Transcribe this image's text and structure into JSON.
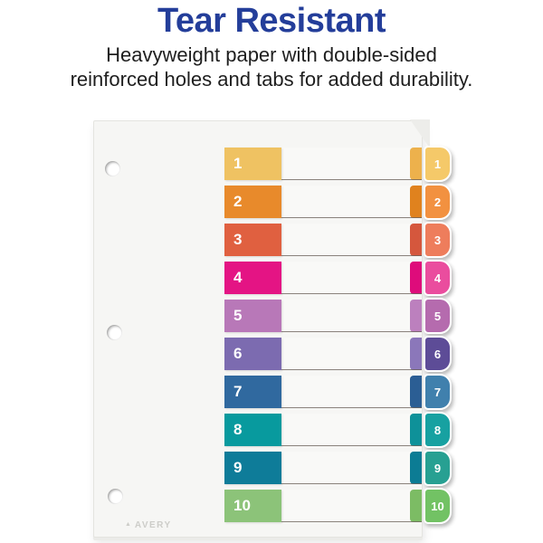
{
  "header": {
    "title": "Tear Resistant",
    "subtitle_line1": "Heavyweight paper with double-sided",
    "subtitle_line2": "reinforced holes and tabs for added durability.",
    "title_color": "#243E9A",
    "subtitle_color": "#1E1E1E"
  },
  "sheet": {
    "background": "#F6F6F4",
    "hole_count": 3,
    "brand": "AVERY",
    "rows": [
      {
        "label": "1",
        "block_color": "#EFC262",
        "strip_color": "#EDB14C",
        "tab_color": "#F5C969"
      },
      {
        "label": "2",
        "block_color": "#E88A2B",
        "strip_color": "#E0821E",
        "tab_color": "#F29140"
      },
      {
        "label": "3",
        "block_color": "#E06040",
        "strip_color": "#D5573D",
        "tab_color": "#EE7D5C"
      },
      {
        "label": "4",
        "block_color": "#E41484",
        "strip_color": "#DE0C7B",
        "tab_color": "#EA4D9E"
      },
      {
        "label": "5",
        "block_color": "#B878B8",
        "strip_color": "#BC80BE",
        "tab_color": "#B56BAE"
      },
      {
        "label": "6",
        "block_color": "#7C6BB0",
        "strip_color": "#8B77BA",
        "tab_color": "#5D4C97"
      },
      {
        "label": "7",
        "block_color": "#30699F",
        "strip_color": "#2B5E94",
        "tab_color": "#4080AD"
      },
      {
        "label": "8",
        "block_color": "#089A9E",
        "strip_color": "#0E9199",
        "tab_color": "#17A1A1"
      },
      {
        "label": "9",
        "block_color": "#0E7C99",
        "strip_color": "#0C7C94",
        "tab_color": "#27A092"
      },
      {
        "label": "10",
        "block_color": "#8CC379",
        "strip_color": "#7CBC64",
        "tab_color": "#72C264"
      }
    ]
  }
}
